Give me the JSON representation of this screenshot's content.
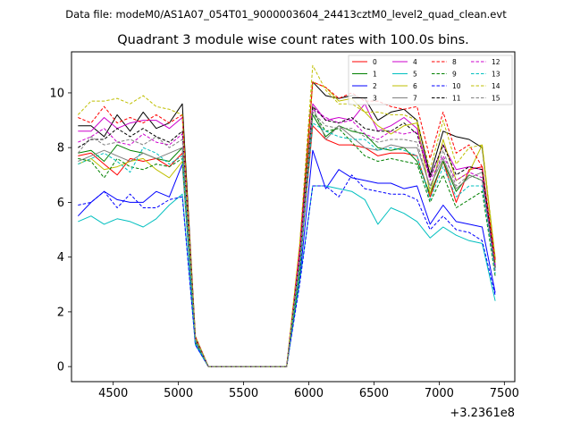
{
  "chart_data": {
    "type": "line",
    "suptitle": "Data file: modeM0/AS1A07_054T01_9000003604_24413cztM0_level2_quad_clean.evt",
    "title": "Quadrant 3 module wise count rates with 100.0s bins.",
    "xlabel": "",
    "ylabel": "",
    "offset_label": "+3.2361e8",
    "xlim": [
      4180,
      7580
    ],
    "ylim": [
      -0.55,
      11.5
    ],
    "xticks": [
      4500,
      5000,
      5500,
      6000,
      6500,
      7000,
      7500
    ],
    "yticks": [
      0,
      2,
      4,
      6,
      8,
      10
    ],
    "x": [
      4230,
      4330,
      4430,
      4530,
      4630,
      4730,
      4830,
      4930,
      5030,
      5130,
      5230,
      5330,
      5430,
      5530,
      5630,
      5730,
      5830,
      5930,
      6030,
      6130,
      6230,
      6330,
      6430,
      6530,
      6630,
      6730,
      6830,
      6930,
      7030,
      7130,
      7230,
      7330,
      7430
    ],
    "series": [
      {
        "name": "0",
        "color": "#ff0000",
        "dash": false,
        "values": [
          7.7,
          7.8,
          7.4,
          7.0,
          7.6,
          7.5,
          7.6,
          7.3,
          7.8,
          0.9,
          0,
          0,
          0,
          0,
          0,
          0,
          0,
          3.6,
          8.8,
          8.3,
          8.1,
          8.1,
          8.0,
          7.7,
          7.8,
          7.8,
          7.7,
          6.2,
          7.5,
          6.0,
          7.2,
          7.3,
          3.7
        ]
      },
      {
        "name": "1",
        "color": "#008000",
        "dash": false,
        "values": [
          7.8,
          7.9,
          7.5,
          8.1,
          7.9,
          7.8,
          7.6,
          7.5,
          8.0,
          1.0,
          0,
          0,
          0,
          0,
          0,
          0,
          0,
          3.8,
          9.2,
          8.4,
          8.8,
          8.6,
          8.5,
          8.0,
          7.9,
          8.0,
          7.5,
          6.3,
          7.5,
          6.4,
          7.0,
          6.8,
          3.6
        ]
      },
      {
        "name": "2",
        "color": "#0000ff",
        "dash": false,
        "values": [
          5.5,
          6.0,
          6.4,
          6.1,
          6.0,
          6.0,
          6.4,
          6.2,
          7.4,
          0.8,
          0,
          0,
          0,
          0,
          0,
          0,
          0,
          3.2,
          7.9,
          6.5,
          7.2,
          6.9,
          6.8,
          6.7,
          6.7,
          6.5,
          6.6,
          5.2,
          5.9,
          5.3,
          5.2,
          5.1,
          2.7
        ]
      },
      {
        "name": "3",
        "color": "#000000",
        "dash": false,
        "values": [
          8.8,
          8.8,
          8.4,
          9.2,
          8.6,
          9.3,
          8.7,
          8.9,
          9.6,
          1.1,
          0,
          0,
          0,
          0,
          0,
          0,
          0,
          4.3,
          10.4,
          9.9,
          9.8,
          9.9,
          9.8,
          9.0,
          9.3,
          9.4,
          9.0,
          7.0,
          8.6,
          8.4,
          8.3,
          8.0,
          3.9
        ]
      },
      {
        "name": "4",
        "color": "#cc00cc",
        "dash": false,
        "values": [
          8.6,
          8.6,
          9.1,
          8.7,
          8.9,
          9.0,
          9.0,
          8.7,
          9.1,
          1.0,
          0,
          0,
          0,
          0,
          0,
          0,
          0,
          4.2,
          9.6,
          9.0,
          9.1,
          9.0,
          9.6,
          8.6,
          8.8,
          9.1,
          8.7,
          6.9,
          8.1,
          7.2,
          7.3,
          7.2,
          3.7
        ]
      },
      {
        "name": "5",
        "color": "#00bfbf",
        "dash": false,
        "values": [
          5.3,
          5.5,
          5.2,
          5.4,
          5.3,
          5.1,
          5.4,
          5.9,
          6.3,
          0.8,
          0,
          0,
          0,
          0,
          0,
          0,
          0,
          3.1,
          6.6,
          6.6,
          6.5,
          6.4,
          6.1,
          5.2,
          5.8,
          5.6,
          5.3,
          4.7,
          5.1,
          4.8,
          4.6,
          4.5,
          2.4
        ]
      },
      {
        "name": "6",
        "color": "#bfbf00",
        "dash": false,
        "values": [
          7.4,
          7.6,
          7.2,
          7.3,
          7.5,
          7.6,
          7.2,
          6.9,
          7.5,
          0.9,
          0,
          0,
          0,
          0,
          0,
          0,
          0,
          3.5,
          10.4,
          10.2,
          9.7,
          9.8,
          9.3,
          8.8,
          8.5,
          8.8,
          8.9,
          6.3,
          8.3,
          6.8,
          7.1,
          8.1,
          3.8
        ]
      },
      {
        "name": "7",
        "color": "#808080",
        "dash": false,
        "values": [
          7.5,
          7.7,
          7.9,
          7.7,
          7.5,
          7.8,
          7.6,
          7.8,
          8.0,
          1.0,
          0,
          0,
          0,
          0,
          0,
          0,
          0,
          3.7,
          9.5,
          8.3,
          8.8,
          8.4,
          8.0,
          7.9,
          8.1,
          8.0,
          8.0,
          6.6,
          7.6,
          6.5,
          6.9,
          7.1,
          3.5
        ]
      },
      {
        "name": "8",
        "color": "#ff0000",
        "dash": true,
        "values": [
          9.1,
          8.9,
          9.5,
          8.9,
          9.1,
          8.9,
          9.2,
          8.9,
          9.2,
          1.1,
          0,
          0,
          0,
          0,
          0,
          0,
          0,
          4.4,
          10.4,
          10.2,
          9.8,
          10.0,
          9.7,
          9.7,
          9.5,
          9.4,
          9.5,
          7.6,
          9.3,
          7.8,
          8.1,
          7.3,
          3.9
        ]
      },
      {
        "name": "9",
        "color": "#008000",
        "dash": true,
        "values": [
          7.6,
          7.5,
          6.9,
          7.6,
          7.3,
          7.2,
          7.4,
          7.3,
          7.6,
          0.9,
          0,
          0,
          0,
          0,
          0,
          0,
          0,
          3.4,
          9.3,
          8.6,
          8.7,
          8.2,
          7.7,
          7.5,
          7.6,
          7.5,
          7.4,
          6.0,
          7.0,
          5.8,
          6.1,
          6.4,
          3.3
        ]
      },
      {
        "name": "10",
        "color": "#0000ff",
        "dash": true,
        "values": [
          5.9,
          6.0,
          6.4,
          5.8,
          6.3,
          5.8,
          5.8,
          6.1,
          6.2,
          0.8,
          0,
          0,
          0,
          0,
          0,
          0,
          0,
          3.0,
          6.6,
          6.6,
          6.2,
          7.0,
          6.5,
          6.4,
          6.3,
          6.3,
          6.1,
          5.0,
          5.5,
          5.0,
          4.9,
          4.6,
          2.6
        ]
      },
      {
        "name": "11",
        "color": "#000000",
        "dash": true,
        "values": [
          8.0,
          8.3,
          8.3,
          8.7,
          8.4,
          8.7,
          8.4,
          8.2,
          8.6,
          1.0,
          0,
          0,
          0,
          0,
          0,
          0,
          0,
          4.0,
          9.5,
          9.0,
          8.9,
          9.1,
          8.7,
          8.6,
          8.6,
          8.9,
          8.5,
          6.9,
          8.1,
          7.0,
          7.3,
          7.2,
          3.6
        ]
      },
      {
        "name": "12",
        "color": "#cc00cc",
        "dash": true,
        "values": [
          8.2,
          8.4,
          8.7,
          8.2,
          8.1,
          8.5,
          8.2,
          8.1,
          8.5,
          1.0,
          0,
          0,
          0,
          0,
          0,
          0,
          0,
          4.0,
          9.4,
          9.1,
          8.9,
          9.0,
          8.5,
          8.3,
          8.6,
          8.5,
          8.6,
          6.8,
          7.7,
          6.8,
          7.1,
          6.9,
          3.5
        ]
      },
      {
        "name": "13",
        "color": "#00bfbf",
        "dash": true,
        "values": [
          7.4,
          7.6,
          7.8,
          7.5,
          7.1,
          8.0,
          7.8,
          7.4,
          7.7,
          0.9,
          0,
          0,
          0,
          0,
          0,
          0,
          0,
          3.6,
          8.9,
          8.6,
          8.4,
          8.3,
          8.3,
          7.9,
          8.0,
          7.9,
          7.7,
          6.1,
          7.3,
          6.2,
          6.6,
          6.6,
          3.4
        ]
      },
      {
        "name": "14",
        "color": "#bfbf00",
        "dash": true,
        "values": [
          9.2,
          9.7,
          9.7,
          9.8,
          9.6,
          9.9,
          9.5,
          9.4,
          9.2,
          1.1,
          0,
          0,
          0,
          0,
          0,
          0,
          0,
          4.5,
          11.0,
          10.1,
          9.6,
          9.6,
          9.3,
          9.3,
          9.2,
          9.2,
          9.0,
          7.2,
          9.0,
          7.4,
          8.0,
          8.1,
          4.0
        ]
      },
      {
        "name": "15",
        "color": "#808080",
        "dash": true,
        "values": [
          7.8,
          8.4,
          8.1,
          8.2,
          8.3,
          8.1,
          8.4,
          8.0,
          8.3,
          1.0,
          0,
          0,
          0,
          0,
          0,
          0,
          0,
          3.8,
          9.3,
          8.8,
          8.7,
          8.7,
          8.4,
          8.2,
          8.3,
          8.3,
          8.2,
          6.5,
          7.9,
          6.6,
          7.0,
          6.8,
          3.5
        ]
      }
    ]
  }
}
